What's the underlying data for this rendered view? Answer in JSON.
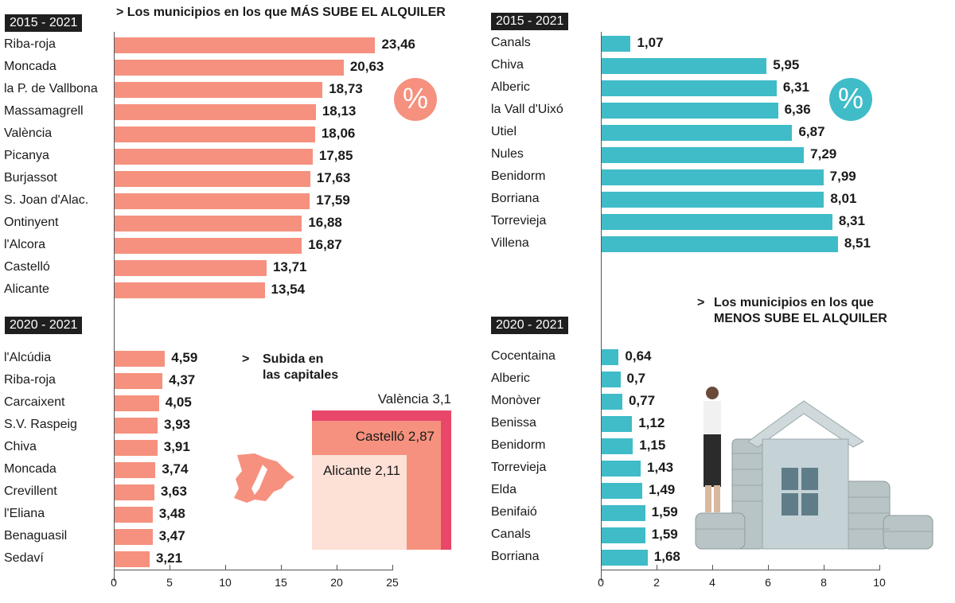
{
  "colors": {
    "left": "#f5917e",
    "right": "#3fbcc8",
    "valencia": "#e8476a",
    "castello": "#f5917e",
    "alicante": "#fde0d6",
    "map": "#f5917e"
  },
  "left_title": "Los municipios en los que MÁS SUBE EL ALQUILER",
  "right_title_line1": "Los municipios en los que",
  "right_title_line2": "MENOS SUBE EL ALQUILER",
  "capitals_title_line1": "Subida en",
  "capitals_title_line2": "las capitales",
  "arrow": ">",
  "percent_symbol": "%",
  "chart_data": [
    {
      "type": "bar",
      "orientation": "horizontal",
      "panel": "top-left",
      "period": "2015 - 2021",
      "xlim": [
        0,
        25
      ],
      "categories": [
        "Riba-roja",
        "Moncada",
        "la P. de Vallbona",
        "Massamagrell",
        "València",
        "Picanya",
        "Burjassot",
        "S. Joan d'Alac.",
        "Ontinyent",
        "l'Alcora",
        "Castelló",
        "Alicante"
      ],
      "values": [
        23.46,
        20.63,
        18.73,
        18.13,
        18.06,
        17.85,
        17.63,
        17.59,
        16.88,
        16.87,
        13.71,
        13.54
      ],
      "labels": [
        "23,46",
        "20,63",
        "18,73",
        "18,13",
        "18,06",
        "17,85",
        "17,63",
        "17,59",
        "16,88",
        "16,87",
        "13,71",
        "13,54"
      ]
    },
    {
      "type": "bar",
      "orientation": "horizontal",
      "panel": "bottom-left",
      "period": "2020 - 2021",
      "xlim": [
        0,
        25
      ],
      "categories": [
        "l'Alcúdia",
        "Riba-roja",
        "Carcaixent",
        "S.V. Raspeig",
        "Chiva",
        "Moncada",
        "Crevillent",
        "l'Eliana",
        "Benaguasil",
        "Sedaví"
      ],
      "values": [
        4.59,
        4.37,
        4.05,
        3.93,
        3.91,
        3.74,
        3.63,
        3.48,
        3.47,
        3.21
      ],
      "labels": [
        "4,59",
        "4,37",
        "4,05",
        "3,93",
        "3,91",
        "3,74",
        "3,63",
        "3,48",
        "3,47",
        "3,21"
      ],
      "xticks": [
        "0",
        "5",
        "10",
        "15",
        "20",
        "25"
      ]
    },
    {
      "type": "bar",
      "orientation": "horizontal",
      "panel": "top-right",
      "period": "2015 - 2021",
      "xlim": [
        0,
        10
      ],
      "categories": [
        "Canals",
        "Chiva",
        "Alberic",
        "la Vall d'Uixó",
        "Utiel",
        "Nules",
        "Benidorm",
        "Borriana",
        "Torrevieja",
        "Villena"
      ],
      "values": [
        1.07,
        5.95,
        6.31,
        6.36,
        6.87,
        7.29,
        7.99,
        8.01,
        8.31,
        8.51
      ],
      "labels": [
        "1,07",
        "5,95",
        "6,31",
        "6,36",
        "6,87",
        "7,29",
        "7,99",
        "8,01",
        "8,31",
        "8,51"
      ]
    },
    {
      "type": "bar",
      "orientation": "horizontal",
      "panel": "bottom-right",
      "period": "2020 - 2021",
      "xlim": [
        0,
        10
      ],
      "categories": [
        "Cocentaina",
        "Alberic",
        "Monòver",
        "Benissa",
        "Benidorm",
        "Torrevieja",
        "Elda",
        "Benifaió",
        "Canals",
        "Borriana"
      ],
      "values": [
        0.64,
        0.7,
        0.77,
        1.12,
        1.15,
        1.43,
        1.49,
        1.59,
        1.59,
        1.68
      ],
      "labels": [
        "0,64",
        "0,7",
        "0,77",
        "1,12",
        "1,15",
        "1,43",
        "1,49",
        "1,59",
        "1,59",
        "1,68"
      ],
      "xticks": [
        "0",
        "2",
        "4",
        "6",
        "8",
        "10"
      ]
    },
    {
      "type": "nested-squares",
      "title": "Subida en las capitales",
      "categories": [
        "València",
        "Castelló",
        "Alicante"
      ],
      "values": [
        3.1,
        2.87,
        2.11
      ],
      "labels": [
        "València 3,1",
        "Castelló 2,87",
        "Alicante 2,11"
      ]
    }
  ]
}
